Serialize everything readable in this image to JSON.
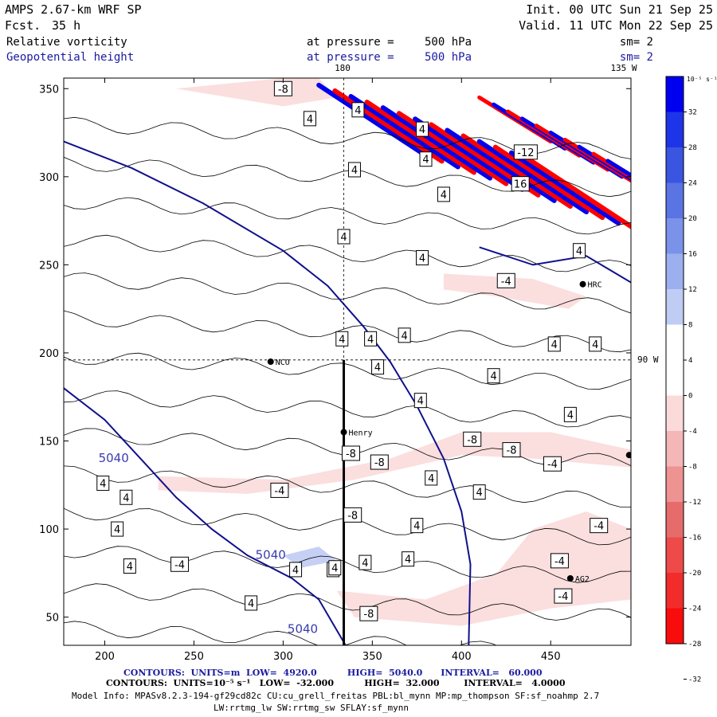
{
  "header": {
    "model": "AMPS 2.67-km WRF SP",
    "fcst_label": "Fcst.",
    "fcst_value": "35 h",
    "init": "Init. 00 UTC Sun 21 Sep 25",
    "valid": "Valid. 11 UTC Mon 22 Sep 25",
    "field1": "Relative vorticity",
    "field2": "Geopotential height",
    "pressure_label": "at pressure =",
    "pressure_value": "500 hPa",
    "sm": "sm= 2",
    "colors": {
      "field1": "#000000",
      "field2": "#1a1aa0"
    }
  },
  "map": {
    "top_labels": [
      "180",
      "135 W"
    ],
    "right_label": "90 W",
    "x_ticks": [
      200,
      250,
      300,
      350,
      400,
      450
    ],
    "y_ticks": [
      350,
      300,
      250,
      200,
      150,
      100,
      50
    ],
    "x_range": [
      177,
      495
    ],
    "y_range": [
      34,
      356
    ],
    "stations": [
      {
        "name": "NCO",
        "x": 293,
        "y": 195
      },
      {
        "name": "Henry",
        "x": 334,
        "y": 155
      },
      {
        "name": "HRC",
        "x": 468,
        "y": 239
      },
      {
        "name": "AG2",
        "x": 461,
        "y": 72
      }
    ],
    "crosshair": {
      "x": 334,
      "y": 196
    },
    "section_line": {
      "x": 334,
      "y0": 34,
      "y1": 196
    },
    "height_contours": [
      {
        "value": 5040,
        "label": "5040",
        "points": [
          [
            177,
            320
          ],
          [
            215,
            305
          ],
          [
            255,
            285
          ],
          [
            300,
            258
          ],
          [
            325,
            238
          ],
          [
            345,
            215
          ],
          [
            360,
            195
          ],
          [
            375,
            170
          ],
          [
            390,
            140
          ],
          [
            400,
            110
          ],
          [
            405,
            80
          ],
          [
            404,
            34
          ]
        ]
      },
      {
        "value": 5040,
        "label": "5040",
        "points": [
          [
            177,
            180
          ],
          [
            200,
            162
          ],
          [
            220,
            140
          ],
          [
            240,
            118
          ],
          [
            260,
            100
          ],
          [
            280,
            85
          ],
          [
            305,
            72
          ],
          [
            320,
            60
          ],
          [
            335,
            34
          ]
        ]
      },
      {
        "value": 4980,
        "label": "",
        "points": [
          [
            410,
            260
          ],
          [
            440,
            250
          ],
          [
            470,
            255
          ],
          [
            495,
            240
          ]
        ]
      }
    ],
    "vort_labels": [
      {
        "v": "4",
        "x": 342,
        "y": 338
      },
      {
        "v": "4",
        "x": 315,
        "y": 333
      },
      {
        "v": "4",
        "x": 378,
        "y": 327
      },
      {
        "v": "4",
        "x": 340,
        "y": 304
      },
      {
        "v": "4",
        "x": 380,
        "y": 310
      },
      {
        "v": "4",
        "x": 390,
        "y": 290
      },
      {
        "v": "4",
        "x": 334,
        "y": 266
      },
      {
        "v": "4",
        "x": 378,
        "y": 254
      },
      {
        "v": "4",
        "x": 368,
        "y": 210
      },
      {
        "v": "4",
        "x": 333,
        "y": 208
      },
      {
        "v": "4",
        "x": 349,
        "y": 208
      },
      {
        "v": "4",
        "x": 353,
        "y": 192
      },
      {
        "v": "4",
        "x": 377,
        "y": 173
      },
      {
        "v": "4",
        "x": 418,
        "y": 187
      },
      {
        "v": "4",
        "x": 452,
        "y": 205
      },
      {
        "v": "4",
        "x": 475,
        "y": 205
      },
      {
        "v": "4",
        "x": 461,
        "y": 165
      },
      {
        "v": "4",
        "x": 199,
        "y": 126
      },
      {
        "v": "4",
        "x": 212,
        "y": 118
      },
      {
        "v": "4",
        "x": 207,
        "y": 100
      },
      {
        "v": "4",
        "x": 214,
        "y": 79
      },
      {
        "v": "4",
        "x": 282,
        "y": 58
      },
      {
        "v": "4",
        "x": 307,
        "y": 77
      },
      {
        "v": "4",
        "x": 328,
        "y": 77
      },
      {
        "v": "4",
        "x": 346,
        "y": 81
      },
      {
        "v": "4",
        "x": 370,
        "y": 83
      },
      {
        "v": "4",
        "x": 375,
        "y": 102
      },
      {
        "v": "4",
        "x": 383,
        "y": 129
      },
      {
        "v": "4",
        "x": 410,
        "y": 121
      },
      {
        "v": "4",
        "x": 329,
        "y": 78
      },
      {
        "v": "4",
        "x": 466,
        "y": 258
      },
      {
        "v": "-4",
        "x": 425,
        "y": 241
      },
      {
        "v": "-4",
        "x": 298,
        "y": 122
      },
      {
        "v": "-4",
        "x": 242,
        "y": 80
      },
      {
        "v": "-4",
        "x": 455,
        "y": 82
      },
      {
        "v": "-4",
        "x": 477,
        "y": 102
      },
      {
        "v": "-4",
        "x": 457,
        "y": 62
      },
      {
        "v": "-4",
        "x": 451,
        "y": 137
      },
      {
        "v": "-8",
        "x": 406,
        "y": 151
      },
      {
        "v": "-8",
        "x": 428,
        "y": 145
      },
      {
        "v": "-8",
        "x": 338,
        "y": 143
      },
      {
        "v": "-8",
        "x": 354,
        "y": 138
      },
      {
        "v": "-8",
        "x": 348,
        "y": 52
      },
      {
        "v": "-8",
        "x": 339,
        "y": 108
      },
      {
        "v": "-8",
        "x": 300,
        "y": 350
      },
      {
        "v": "-12",
        "x": 436,
        "y": 314
      },
      {
        "v": "16",
        "x": 433,
        "y": 296
      }
    ],
    "extra_label": "135 W"
  },
  "colorbar": {
    "unit": "10⁻⁵ s⁻¹",
    "ticks": [
      "32",
      "28",
      "24",
      "20",
      "16",
      "12",
      "8",
      "4",
      "0",
      "-4",
      "-8",
      "-12",
      "-16",
      "-20",
      "-24",
      "-28",
      "-32"
    ],
    "colors": [
      "#0000f0",
      "#1e34e8",
      "#3a55e0",
      "#5a74e4",
      "#7b92ea",
      "#9cb0ef",
      "#bfcdf5",
      "#ffffff",
      "#ffffff",
      "#fbdada",
      "#f4b6b6",
      "#ee9292",
      "#e66c6c",
      "#ee4a4a",
      "#f22b2b",
      "#f80c0c"
    ]
  },
  "footer": {
    "line1": "CONTOURS:  UNITS=m  LOW=  4920.0          HIGH=  5040.0      INTERVAL=   60.000",
    "line2": "CONTOURS:  UNITS=10⁻⁵ s⁻¹   LOW=  -32.000          HIGH=  32.000        INTERVAL=   4.0000",
    "line3": "Model Info: MPASv8.2.3-194-gf29cd82c CU:cu_grell_freitas PBL:bl_mynn MP:mp_thompson SF:sf_noahmp 2.7",
    "line4": "LW:rrtmg_lw SW:rrtmg_sw SFLAY:sf_mynn",
    "colors": {
      "line1": "#1a1aa0",
      "line2": "#000000"
    }
  }
}
